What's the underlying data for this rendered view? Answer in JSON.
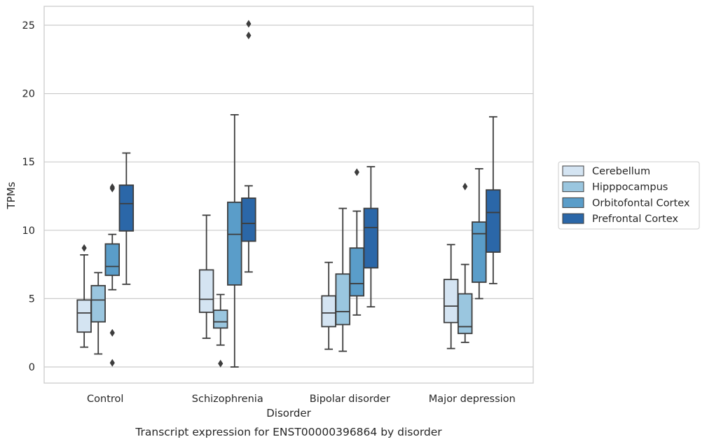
{
  "chart_data": {
    "type": "boxplot",
    "title": "Transcript expression for ENST00000396864 by disorder",
    "xlabel": "Disorder",
    "ylabel": "TPMs",
    "ylim": [
      -1.2,
      26.4
    ],
    "yticks": [
      0,
      5,
      10,
      15,
      20,
      25
    ],
    "grid": true,
    "legend_position": "right",
    "categories": [
      "Control",
      "Schizophrenia",
      "Bipolar disorder",
      "Major depression"
    ],
    "series": [
      {
        "name": "Cerebellum",
        "color": "#d4e4f2",
        "boxes": [
          {
            "whislo": 1.45,
            "q1": 2.55,
            "med": 3.95,
            "q3": 4.9,
            "whishi": 8.2,
            "fliers": [
              8.7
            ]
          },
          {
            "whislo": 2.1,
            "q1": 4.0,
            "med": 4.95,
            "q3": 7.1,
            "whishi": 11.1,
            "fliers": []
          },
          {
            "whislo": 1.3,
            "q1": 2.95,
            "med": 3.95,
            "q3": 5.2,
            "whishi": 7.65,
            "fliers": []
          },
          {
            "whislo": 1.35,
            "q1": 3.25,
            "med": 4.45,
            "q3": 6.4,
            "whishi": 8.95,
            "fliers": []
          }
        ]
      },
      {
        "name": "Hipppocampus",
        "color": "#9ac6df",
        "boxes": [
          {
            "whislo": 0.95,
            "q1": 3.3,
            "med": 4.9,
            "q3": 5.95,
            "whishi": 6.9,
            "fliers": []
          },
          {
            "whislo": 1.6,
            "q1": 2.85,
            "med": 3.3,
            "q3": 4.15,
            "whishi": 5.3,
            "fliers": [
              0.25
            ]
          },
          {
            "whislo": 1.15,
            "q1": 3.1,
            "med": 4.05,
            "q3": 6.8,
            "whishi": 11.6,
            "fliers": []
          },
          {
            "whislo": 1.8,
            "q1": 2.45,
            "med": 2.95,
            "q3": 5.35,
            "whishi": 7.5,
            "fliers": [
              13.2
            ]
          }
        ]
      },
      {
        "name": "Orbitofontal Cortex",
        "color": "#5a9dc9",
        "boxes": [
          {
            "whislo": 5.65,
            "q1": 6.7,
            "med": 7.35,
            "q3": 9.0,
            "whishi": 9.7,
            "fliers": [
              13.05,
              13.15,
              0.3,
              2.5
            ]
          },
          {
            "whislo": 0.0,
            "q1": 6.0,
            "med": 9.7,
            "q3": 12.05,
            "whishi": 18.45,
            "fliers": []
          },
          {
            "whislo": 3.8,
            "q1": 5.2,
            "med": 6.1,
            "q3": 8.7,
            "whishi": 11.4,
            "fliers": [
              14.25
            ]
          },
          {
            "whislo": 5.0,
            "q1": 6.2,
            "med": 9.75,
            "q3": 10.6,
            "whishi": 14.5,
            "fliers": []
          }
        ]
      },
      {
        "name": "Prefrontal Cortex",
        "color": "#2b67a8",
        "boxes": [
          {
            "whislo": 6.05,
            "q1": 9.95,
            "med": 11.95,
            "q3": 13.3,
            "whishi": 15.65,
            "fliers": []
          },
          {
            "whislo": 6.95,
            "q1": 9.2,
            "med": 10.5,
            "q3": 12.35,
            "whishi": 13.25,
            "fliers": [
              25.1,
              24.25
            ]
          },
          {
            "whislo": 4.4,
            "q1": 7.25,
            "med": 10.2,
            "q3": 11.6,
            "whishi": 14.65,
            "fliers": []
          },
          {
            "whislo": 6.1,
            "q1": 8.4,
            "med": 11.3,
            "q3": 12.95,
            "whishi": 18.3,
            "fliers": []
          }
        ]
      }
    ]
  }
}
